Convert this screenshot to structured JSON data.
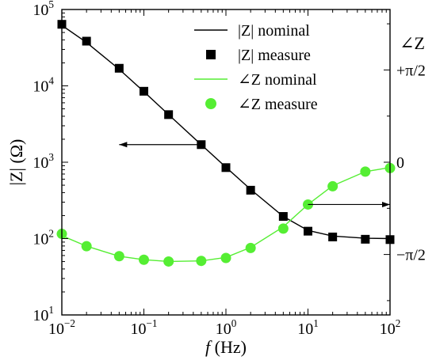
{
  "chart_data": {
    "type": "line",
    "x_axis": {
      "label_italic": "f",
      "label_rest": " (Hz)",
      "scale": "log",
      "range": [
        0.01,
        100
      ],
      "ticks": [
        {
          "value": 0.01,
          "base": "10",
          "exp": "−2"
        },
        {
          "value": 0.1,
          "base": "10",
          "exp": "−1"
        },
        {
          "value": 1,
          "base": "10",
          "exp": "0"
        },
        {
          "value": 10,
          "base": "10",
          "exp": "1"
        },
        {
          "value": 100,
          "base": "10",
          "exp": "2"
        }
      ]
    },
    "y_left": {
      "label": "|Z| (Ω)",
      "scale": "log",
      "range": [
        10,
        100000
      ],
      "ticks": [
        {
          "value": 10,
          "base": "10",
          "exp": "1"
        },
        {
          "value": 100,
          "base": "10",
          "exp": "2"
        },
        {
          "value": 1000,
          "base": "10",
          "exp": "3"
        },
        {
          "value": 10000,
          "base": "10",
          "exp": "4"
        },
        {
          "value": 100000,
          "base": "10",
          "exp": "5"
        }
      ]
    },
    "y_right": {
      "label": "∠Z",
      "range_radians": [
        -2.6,
        2.6
      ],
      "ticks": [
        {
          "value": 1.5708,
          "label": "+π/2"
        },
        {
          "value": 0,
          "label": "0"
        },
        {
          "value": -1.5708,
          "label": "−π/2"
        }
      ]
    },
    "series": [
      {
        "name": "|Z| nominal",
        "kind": "line",
        "axis": "left",
        "color": "#000000",
        "points": [
          [
            0.01,
            62000
          ],
          [
            0.02,
            37000
          ],
          [
            0.05,
            16500
          ],
          [
            0.1,
            8400
          ],
          [
            0.2,
            4200
          ],
          [
            0.5,
            1700
          ],
          [
            1,
            860
          ],
          [
            2,
            440
          ],
          [
            5,
            195
          ],
          [
            10,
            128
          ],
          [
            20,
            108
          ],
          [
            50,
            101
          ],
          [
            100,
            100
          ]
        ]
      },
      {
        "name": "|Z| measure",
        "kind": "markers",
        "marker": "square",
        "axis": "left",
        "color": "#000000",
        "points": [
          [
            0.01,
            64000
          ],
          [
            0.02,
            38500
          ],
          [
            0.05,
            17000
          ],
          [
            0.1,
            8500
          ],
          [
            0.2,
            4200
          ],
          [
            0.5,
            1700
          ],
          [
            1,
            850
          ],
          [
            2,
            430
          ],
          [
            5,
            195
          ],
          [
            10,
            125
          ],
          [
            20,
            105
          ],
          [
            50,
            98
          ],
          [
            100,
            97
          ]
        ]
      },
      {
        "name": "∠Z nominal",
        "kind": "line",
        "axis": "right",
        "color": "#55ee33",
        "points": [
          [
            0.01,
            -1.25
          ],
          [
            0.02,
            -1.43
          ],
          [
            0.05,
            -1.6
          ],
          [
            0.1,
            -1.66
          ],
          [
            0.2,
            -1.69
          ],
          [
            0.5,
            -1.68
          ],
          [
            1,
            -1.62
          ],
          [
            2,
            -1.45
          ],
          [
            5,
            -1.1
          ],
          [
            10,
            -0.72
          ],
          [
            20,
            -0.4
          ],
          [
            50,
            -0.16
          ],
          [
            100,
            -0.09
          ]
        ]
      },
      {
        "name": "∠Z measure",
        "kind": "markers",
        "marker": "circle",
        "axis": "right",
        "color": "#55ee33",
        "points": [
          [
            0.01,
            -1.22
          ],
          [
            0.02,
            -1.43
          ],
          [
            0.05,
            -1.6
          ],
          [
            0.1,
            -1.66
          ],
          [
            0.2,
            -1.69
          ],
          [
            0.5,
            -1.68
          ],
          [
            1,
            -1.63
          ],
          [
            2,
            -1.46
          ],
          [
            5,
            -1.13
          ],
          [
            10,
            -0.72
          ],
          [
            20,
            -0.41
          ],
          [
            50,
            -0.16
          ],
          [
            100,
            -0.1
          ]
        ]
      }
    ],
    "annotations": [
      {
        "type": "arrow",
        "direction": "left",
        "x_from": 0.5,
        "x_to": 0.05,
        "y": 1700,
        "axis": "left",
        "meaning": "points to |Z| axis"
      },
      {
        "type": "arrow",
        "direction": "right",
        "x_from": 10,
        "x_to": 100,
        "y": -0.72,
        "axis": "right",
        "meaning": "points to ∠Z axis"
      }
    ],
    "legend": {
      "placement": "top-right",
      "entries": [
        {
          "label": "|Z| nominal",
          "series": 0
        },
        {
          "label": "|Z| measure",
          "series": 1
        },
        {
          "label": "∠Z nominal",
          "series": 2
        },
        {
          "label": "∠Z measure",
          "series": 3
        }
      ]
    },
    "grid": false
  }
}
